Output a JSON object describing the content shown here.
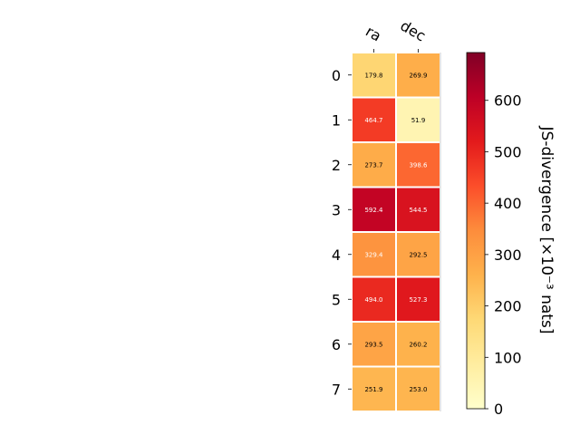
{
  "chart_data": {
    "type": "heatmap",
    "title": "",
    "columns": [
      "ra",
      "dec"
    ],
    "rows": [
      "0",
      "1",
      "2",
      "3",
      "4",
      "5",
      "6",
      "7"
    ],
    "values": [
      [
        179.8,
        269.9
      ],
      [
        464.7,
        51.9
      ],
      [
        273.7,
        398.6
      ],
      [
        592.4,
        544.5
      ],
      [
        329.4,
        292.5
      ],
      [
        494.0,
        527.3
      ],
      [
        293.5,
        260.2
      ],
      [
        251.9,
        253.0
      ]
    ],
    "cell_labels": [
      [
        "179.8",
        "269.9"
      ],
      [
        "464.7",
        "51.9"
      ],
      [
        "273.7",
        "398.6"
      ],
      [
        "592.4",
        "544.5"
      ],
      [
        "329.4",
        "292.5"
      ],
      [
        "494.0",
        "527.3"
      ],
      [
        "293.5",
        "260.2"
      ],
      [
        "251.9",
        "253.0"
      ]
    ],
    "colorbar": {
      "label": "JS-divergence [×10⁻³ nats]",
      "range": [
        0,
        693
      ],
      "ticks": [
        0,
        100,
        200,
        300,
        400,
        500,
        600
      ],
      "tick_labels": [
        "0",
        "100",
        "200",
        "300",
        "400",
        "500",
        "600"
      ],
      "colormap": "YlOrRd",
      "colormap_stops": [
        "#ffffcc",
        "#ffeda0",
        "#fed976",
        "#feb24c",
        "#fd8d3c",
        "#fc4e2a",
        "#e31a1c",
        "#bd0026",
        "#800026"
      ]
    },
    "grid": false
  }
}
